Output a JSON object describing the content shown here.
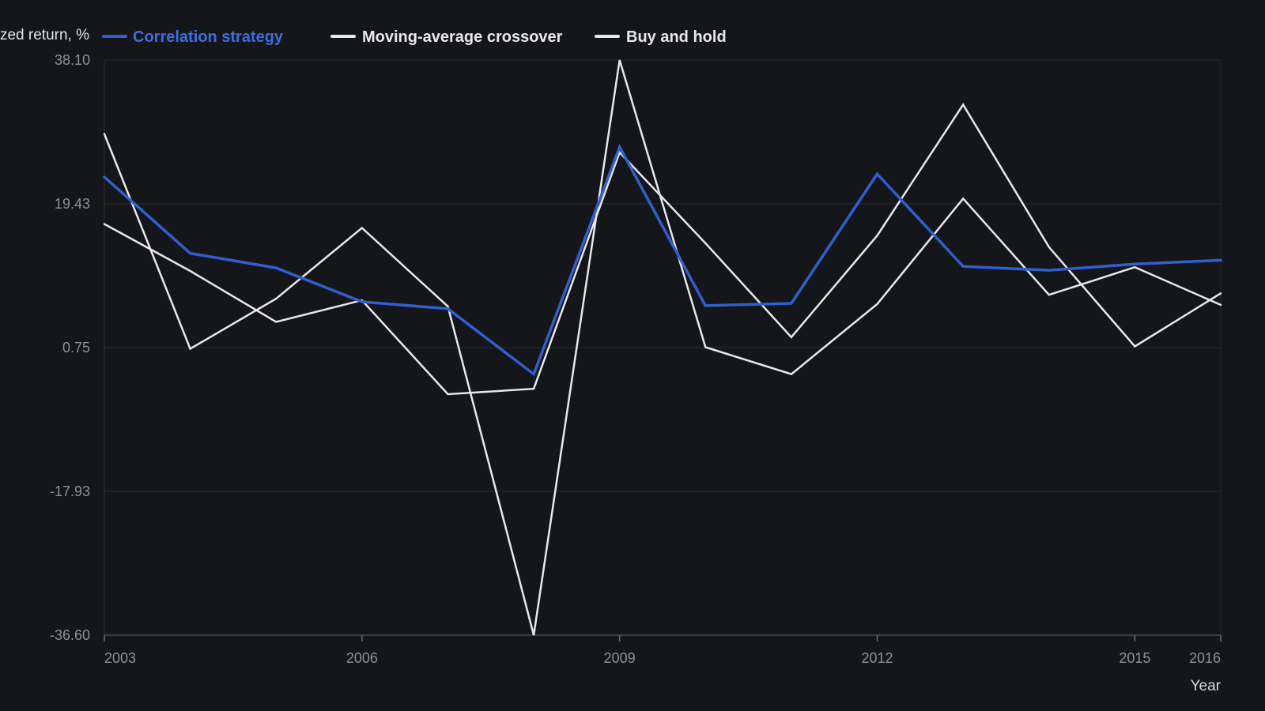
{
  "chart_data": {
    "type": "line",
    "title": "",
    "xlabel": "Year",
    "ylabel": "Annualized return, %",
    "x": [
      2003,
      2004,
      2005,
      2006,
      2007,
      2008,
      2009,
      2010,
      2011,
      2012,
      2013,
      2014,
      2015,
      2016
    ],
    "x_ticks": [
      2003,
      2006,
      2009,
      2012,
      2015,
      2016
    ],
    "y_ticks": [
      -36.6,
      -17.93,
      0.75,
      19.43,
      38.1
    ],
    "y_tick_labels": [
      "-36.60",
      "-17.93",
      "0.75",
      "19.43",
      "38.10"
    ],
    "xlim": [
      2003,
      2016
    ],
    "ylim": [
      -36.6,
      38.1
    ],
    "grid": true,
    "legend_position": "top",
    "series": [
      {
        "name": "Correlation strategy",
        "color": "#2f5fd0",
        "values": [
          22.9,
          13.0,
          11.1,
          6.7,
          5.8,
          -2.7,
          26.8,
          6.2,
          6.5,
          23.3,
          11.3,
          10.8,
          11.6,
          12.1
        ]
      },
      {
        "name": "Moving-average crossover",
        "color": "#e8e8e8",
        "values": [
          28.5,
          0.6,
          7.1,
          16.3,
          6.1,
          -36.6,
          38.1,
          0.8,
          -2.7,
          6.4,
          20.1,
          7.6,
          11.2,
          6.3
        ]
      },
      {
        "name": "Buy and hold",
        "color": "#e8e8e8",
        "values": [
          16.8,
          10.7,
          4.1,
          6.9,
          -5.3,
          -4.6,
          26.1,
          14.3,
          2.1,
          15.3,
          32.3,
          13.8,
          0.9,
          7.8
        ]
      }
    ]
  }
}
